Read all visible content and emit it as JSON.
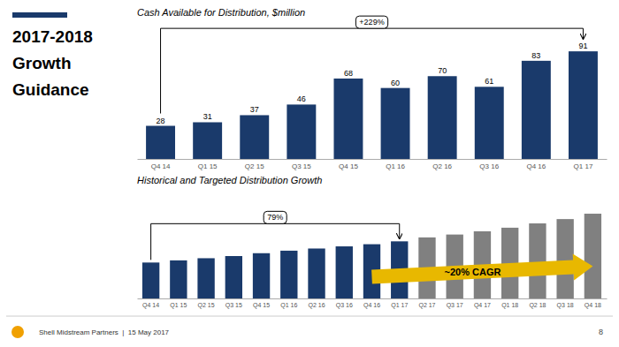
{
  "heading": [
    "2017-2018",
    "Growth",
    "Guidance"
  ],
  "footer": "Shell Midstream Partners  |  15 May 2017",
  "page_number": "8",
  "chart_data": [
    {
      "type": "bar",
      "title": "Cash Available for Distribution, $million",
      "categories": [
        "Q4 14",
        "Q1 15",
        "Q2 15",
        "Q3 15",
        "Q4 15",
        "Q1 16",
        "Q2 16",
        "Q3 16",
        "Q4 16",
        "Q1 17"
      ],
      "values": [
        28,
        31,
        37,
        46,
        68,
        60,
        70,
        61,
        83,
        91
      ],
      "color": "#1a3a6b",
      "ylim": [
        0,
        115
      ],
      "tick_labels": "x",
      "data_labels": true,
      "annotations": [
        {
          "text": "+229%",
          "type": "bracket"
        }
      ]
    },
    {
      "type": "bar",
      "title": "Historical and Targeted Distribution Growth",
      "categories": [
        "Q4 14",
        "Q1 15",
        "Q2 15",
        "Q3 15",
        "Q4 15",
        "Q1 16",
        "Q2 16",
        "Q3 16",
        "Q4 16",
        "Q1 17",
        "Q2 17",
        "Q3 17",
        "Q4 17",
        "Q1 18",
        "Q2 18",
        "Q3 18",
        "Q4 18"
      ],
      "series": [
        {
          "color": "#1a3a6b",
          "values": [
            1.0,
            1.06,
            1.12,
            1.18,
            1.26,
            1.33,
            1.39,
            1.45,
            1.51,
            1.59,
            0,
            0,
            0,
            0,
            0,
            0,
            0
          ]
        },
        {
          "color": "#808080",
          "values": [
            0,
            0,
            0,
            0,
            0,
            0,
            0,
            0,
            0,
            0,
            1.7,
            1.78,
            1.87,
            1.97,
            2.09,
            2.21,
            2.36
          ]
        }
      ],
      "ylim": [
        0,
        3.0
      ],
      "tick_labels": "x",
      "annotations": [
        {
          "text": "79%",
          "type": "bracket"
        },
        {
          "text": "~20% CAGR",
          "type": "arrow",
          "color": "#e8b800"
        }
      ]
    }
  ]
}
